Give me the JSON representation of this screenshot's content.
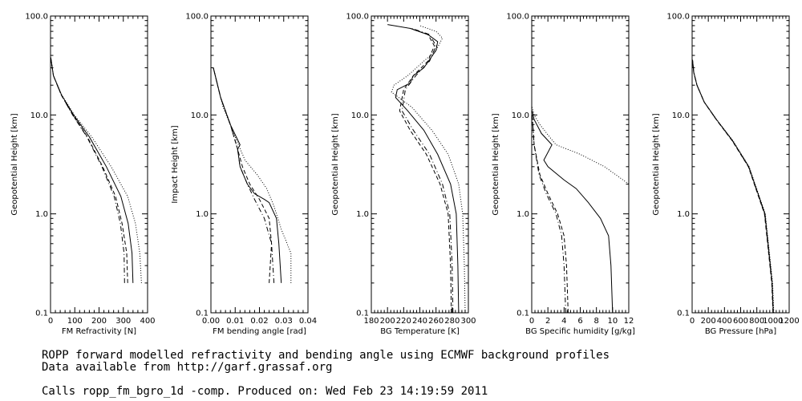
{
  "caption": {
    "line1": "ROPP forward modelled refractivity and bending angle using ECMWF background profiles",
    "line2": "Data available from http://garf.grassaf.org",
    "line3": "Calls ropp_fm_bgro_1d -comp. Produced on: Wed Feb 23 14:19:59 2011"
  },
  "chart_data": [
    {
      "type": "line",
      "xlabel": "FM Refractivity [N]",
      "ylabel": "Geopotential Height [km]",
      "xlim": [
        0,
        400
      ],
      "xticks": [
        "0",
        "100",
        "200",
        "300",
        "400"
      ],
      "y_scale": "log",
      "ylim": [
        0.1,
        100.0
      ],
      "yticks": [
        "0.1",
        "1.0",
        "10.0",
        "100.0"
      ],
      "series": [
        {
          "style": "solid",
          "x": [
            340,
            336,
            320,
            290,
            230,
            160,
            95,
            45,
            12,
            1
          ],
          "y": [
            0.2,
            0.4,
            0.8,
            1.5,
            3.0,
            6.0,
            10,
            16,
            25,
            38
          ]
        },
        {
          "style": "dashed",
          "x": [
            318,
            314,
            295,
            268,
            215,
            152,
            92,
            44,
            12,
            1
          ],
          "y": [
            0.2,
            0.4,
            0.8,
            1.5,
            3.0,
            6.0,
            10,
            16,
            25,
            38
          ]
        },
        {
          "style": "dashdot",
          "x": [
            305,
            303,
            288,
            262,
            212,
            150,
            91,
            44,
            12,
            1
          ],
          "y": [
            0.2,
            0.4,
            0.8,
            1.5,
            3.0,
            6.0,
            10,
            16,
            25,
            38
          ]
        },
        {
          "style": "dotted",
          "x": [
            375,
            368,
            350,
            318,
            250,
            170,
            98,
            46,
            12,
            1
          ],
          "y": [
            0.2,
            0.4,
            0.8,
            1.5,
            3.0,
            6.0,
            10,
            16,
            25,
            38
          ]
        }
      ]
    },
    {
      "type": "line",
      "xlabel": "FM bending angle [rad]",
      "ylabel": "Impact Height [km]",
      "xlim": [
        0,
        0.04
      ],
      "xticks": [
        "0.00",
        "0.01",
        "0.02",
        "0.03",
        "0.04"
      ],
      "y_scale": "log",
      "ylim": [
        0.1,
        100.0
      ],
      "yticks": [
        "0.1",
        "1.0",
        "10.0",
        "100.0"
      ],
      "series": [
        {
          "style": "solid",
          "x": [
            0.029,
            0.028,
            0.027,
            0.024,
            0.022,
            0.018,
            0.015,
            0.012,
            0.011,
            0.012,
            0.008,
            0.004,
            0.001
          ],
          "y": [
            0.2,
            0.5,
            0.9,
            1.3,
            1.4,
            1.6,
            2.0,
            3.0,
            4.5,
            5.0,
            8.0,
            15,
            30
          ]
        },
        {
          "style": "dashed",
          "x": [
            0.024,
            0.025,
            0.024,
            0.02,
            0.016,
            0.013,
            0.011,
            0.008,
            0.004,
            0.001
          ],
          "y": [
            0.2,
            0.5,
            0.9,
            1.4,
            2.0,
            3.0,
            4.5,
            8.0,
            15,
            30
          ]
        },
        {
          "style": "dashdot",
          "x": [
            0.026,
            0.025,
            0.022,
            0.018,
            0.015,
            0.012,
            0.011,
            0.008,
            0.004,
            0.001
          ],
          "y": [
            0.2,
            0.5,
            0.9,
            1.4,
            2.0,
            3.0,
            4.5,
            8.0,
            15,
            30
          ]
        },
        {
          "style": "dotted",
          "x": [
            0.033,
            0.033,
            0.029,
            0.026,
            0.023,
            0.019,
            0.014,
            0.01,
            0.005,
            0.001
          ],
          "y": [
            0.2,
            0.4,
            0.7,
            1.2,
            1.8,
            2.5,
            3.5,
            6.0,
            12,
            30
          ]
        }
      ]
    },
    {
      "type": "line",
      "xlabel": "BG Temperature [K]",
      "ylabel": "Geopotential Height [km]",
      "xlim": [
        180,
        300
      ],
      "xticks": [
        "180",
        "200",
        "220",
        "240",
        "260",
        "280",
        "300"
      ],
      "y_scale": "log",
      "ylim": [
        0.1,
        100.0
      ],
      "yticks": [
        "0.1",
        "1.0",
        "10.0",
        "100.0"
      ],
      "series": [
        {
          "style": "solid",
          "x": [
            288,
            287,
            285,
            278,
            262,
            245,
            225,
            210,
            212,
            228,
            232,
            245,
            260,
            262,
            250,
            228,
            200
          ],
          "y": [
            0.1,
            0.3,
            1.0,
            2.0,
            4.0,
            7.0,
            11,
            15,
            18,
            21,
            25,
            30,
            45,
            55,
            65,
            75,
            82
          ]
        },
        {
          "style": "dashed",
          "x": [
            279,
            278,
            275,
            265,
            248,
            228,
            215,
            220,
            232,
            250,
            258,
            250,
            228
          ],
          "y": [
            0.1,
            0.3,
            1.0,
            2.0,
            4.0,
            7.0,
            11,
            18,
            25,
            35,
            50,
            65,
            75
          ]
        },
        {
          "style": "dashdot",
          "x": [
            281,
            280,
            277,
            268,
            252,
            232,
            218,
            222,
            235,
            252,
            260,
            252,
            230
          ],
          "y": [
            0.1,
            0.3,
            1.0,
            2.0,
            4.0,
            7.0,
            11,
            18,
            25,
            35,
            50,
            65,
            75
          ]
        },
        {
          "style": "dotted",
          "x": [
            296,
            295,
            293,
            288,
            275,
            255,
            230,
            205,
            208,
            225,
            245,
            260,
            268,
            260,
            240
          ],
          "y": [
            0.1,
            0.3,
            1.0,
            2.0,
            4.0,
            7.0,
            12,
            17,
            20,
            25,
            35,
            45,
            60,
            70,
            80
          ]
        }
      ]
    },
    {
      "type": "line",
      "xlabel": "BG Specific humidity [g/kg]",
      "ylabel": "Geopotential Height [km]",
      "xlim": [
        0,
        12
      ],
      "xticks": [
        "0",
        "2",
        "4",
        "6",
        "8",
        "10",
        "12"
      ],
      "y_scale": "log",
      "ylim": [
        0.1,
        100.0
      ],
      "yticks": [
        "0.1",
        "1.0",
        "10.0",
        "100.0"
      ],
      "series": [
        {
          "style": "solid",
          "x": [
            10,
            9.8,
            9.5,
            8.5,
            7.0,
            5.5,
            4.0,
            2.0,
            1.5,
            2.5,
            1.2,
            0.3,
            0.05
          ],
          "y": [
            0.1,
            0.3,
            0.6,
            0.9,
            1.3,
            1.8,
            2.2,
            3.0,
            3.5,
            5.0,
            6.5,
            9.0,
            11
          ]
        },
        {
          "style": "dashed",
          "x": [
            4.5,
            4.3,
            4.0,
            3.2,
            2.0,
            1.0,
            0.3,
            0.05
          ],
          "y": [
            0.1,
            0.3,
            0.6,
            1.0,
            1.6,
            2.5,
            5.0,
            10
          ]
        },
        {
          "style": "dashdot",
          "x": [
            4.2,
            4.0,
            3.7,
            3.0,
            1.8,
            0.9,
            0.3,
            0.05
          ],
          "y": [
            0.1,
            0.3,
            0.6,
            1.0,
            1.6,
            2.5,
            5.0,
            10
          ]
        },
        {
          "style": "dotted",
          "x": [
            12,
            9.0,
            6.0,
            3.0,
            2.2,
            1.0,
            0.3,
            0.05
          ],
          "y": [
            2.0,
            3.0,
            4.0,
            5.0,
            6.0,
            8.0,
            10,
            12
          ]
        }
      ]
    },
    {
      "type": "line",
      "xlabel": "BG Pressure [hPa]",
      "ylabel": "Geopotential Height [km]",
      "xlim": [
        0,
        1200
      ],
      "xticks": [
        "0",
        "200",
        "400",
        "600",
        "800",
        "1000",
        "1200"
      ],
      "y_scale": "log",
      "ylim": [
        0.1,
        100.0
      ],
      "yticks": [
        "0.1",
        "1.0",
        "10.0",
        "100.0"
      ],
      "series": [
        {
          "style": "solid",
          "x": [
            1005,
            990,
            900,
            700,
            500,
            300,
            150,
            60,
            20,
            5
          ],
          "y": [
            0.1,
            0.2,
            1.0,
            3.0,
            5.5,
            9.0,
            13.5,
            20,
            27,
            36
          ]
        },
        {
          "style": "dashed",
          "x": [
            1000,
            985,
            895,
            695,
            495,
            298,
            149,
            60,
            20,
            5
          ],
          "y": [
            0.1,
            0.2,
            1.0,
            3.0,
            5.5,
            9.0,
            13.5,
            20,
            27,
            36
          ]
        },
        {
          "style": "dashdot",
          "x": [
            1003,
            988,
            898,
            698,
            498,
            299,
            150,
            60,
            20,
            5
          ],
          "y": [
            0.1,
            0.2,
            1.0,
            3.0,
            5.5,
            9.0,
            13.5,
            20,
            27,
            36
          ]
        },
        {
          "style": "dotted",
          "x": [
            1010,
            995,
            905,
            705,
            505,
            302,
            151,
            61,
            20,
            5
          ],
          "y": [
            0.1,
            0.2,
            1.0,
            3.0,
            5.5,
            9.0,
            13.5,
            20,
            27,
            36
          ]
        }
      ]
    }
  ]
}
